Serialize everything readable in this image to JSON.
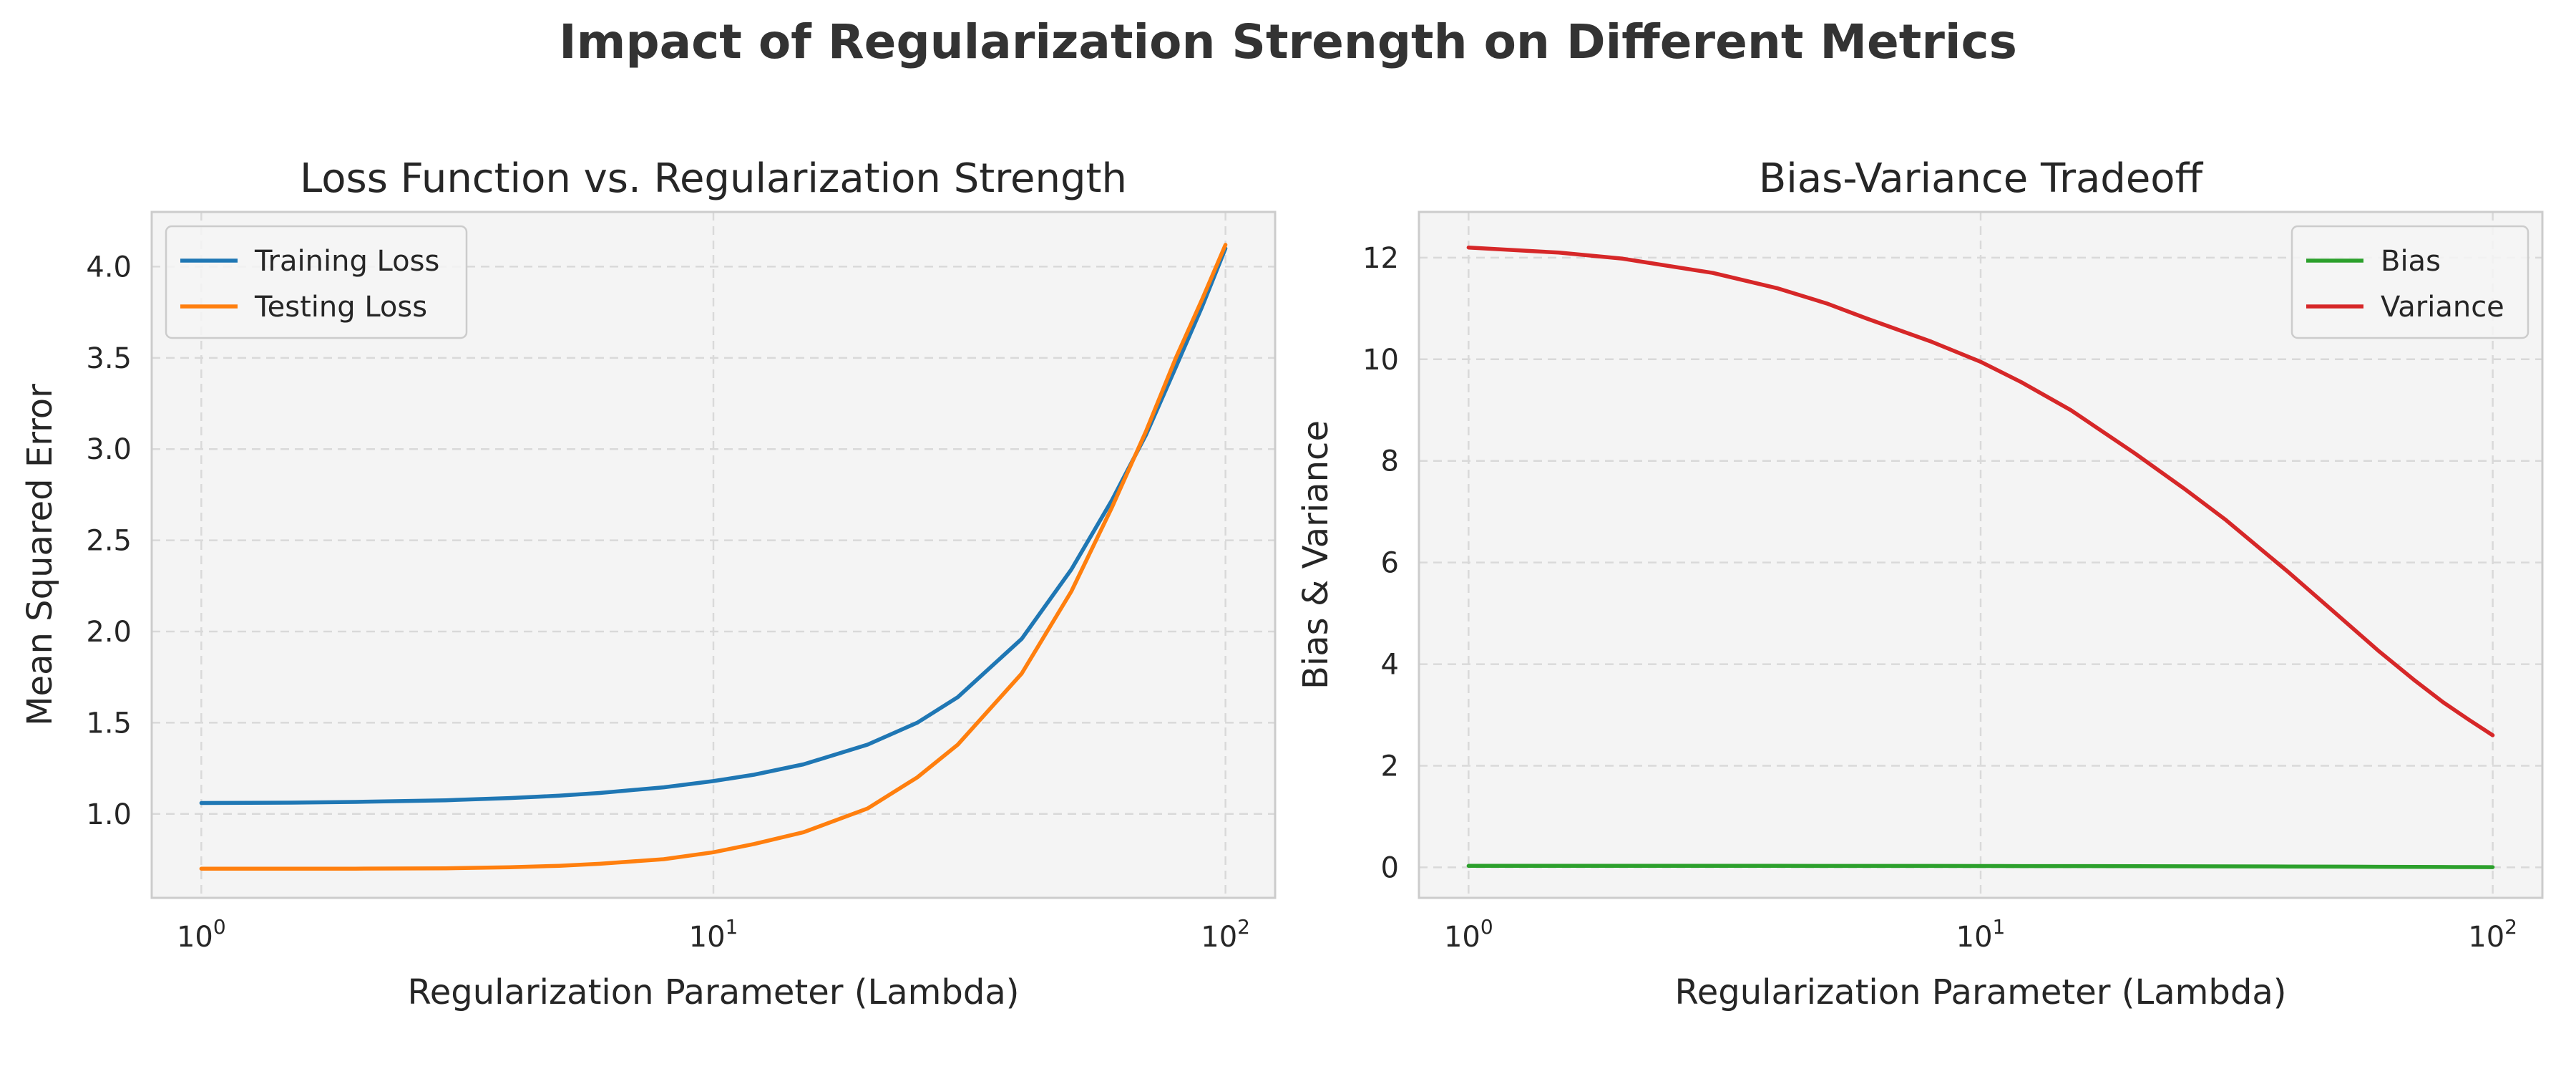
{
  "figure": {
    "title": "Impact of Regularization Strength on Different Metrics"
  },
  "chart_data": [
    {
      "type": "line",
      "title": "Loss Function vs. Regularization Strength",
      "xlabel": "Regularization Parameter (Lambda)",
      "ylabel": "Mean Squared Error",
      "xscale": "log",
      "xlim": [
        0.8,
        125
      ],
      "ylim": [
        0.54,
        4.3
      ],
      "xticks": [
        1,
        10,
        100
      ],
      "xtick_labels": [
        {
          "base": "10",
          "exp": "0"
        },
        {
          "base": "10",
          "exp": "1"
        },
        {
          "base": "10",
          "exp": "2"
        }
      ],
      "yticks": [
        1.0,
        1.5,
        2.0,
        2.5,
        3.0,
        3.5,
        4.0
      ],
      "ytick_labels": [
        "1.0",
        "1.5",
        "2.0",
        "2.5",
        "3.0",
        "3.5",
        "4.0"
      ],
      "grid": true,
      "legend_position": "top-left",
      "x": [
        1,
        1.5,
        2,
        3,
        4,
        5,
        6,
        8,
        10,
        12,
        15,
        20,
        25,
        30,
        40,
        50,
        60,
        70,
        80,
        90,
        100
      ],
      "series": [
        {
          "name": "Training Loss",
          "color": "#1f77b4",
          "values": [
            1.06,
            1.062,
            1.066,
            1.075,
            1.087,
            1.1,
            1.115,
            1.146,
            1.18,
            1.215,
            1.272,
            1.38,
            1.5,
            1.64,
            1.96,
            2.34,
            2.72,
            3.08,
            3.45,
            3.78,
            4.1
          ]
        },
        {
          "name": "Testing Loss",
          "color": "#ff7f0e",
          "values": [
            0.7,
            0.7,
            0.7,
            0.702,
            0.708,
            0.716,
            0.727,
            0.752,
            0.79,
            0.835,
            0.9,
            1.03,
            1.2,
            1.38,
            1.77,
            2.22,
            2.68,
            3.1,
            3.5,
            3.82,
            4.12
          ]
        }
      ]
    },
    {
      "type": "line",
      "title": "Bias-Variance Tradeoff",
      "xlabel": "Regularization Parameter (Lambda)",
      "ylabel": "Bias & Variance",
      "xscale": "log",
      "xlim": [
        0.8,
        125
      ],
      "ylim": [
        -0.6,
        12.9
      ],
      "xticks": [
        1,
        10,
        100
      ],
      "xtick_labels": [
        {
          "base": "10",
          "exp": "0"
        },
        {
          "base": "10",
          "exp": "1"
        },
        {
          "base": "10",
          "exp": "2"
        }
      ],
      "yticks": [
        0,
        2,
        4,
        6,
        8,
        10,
        12
      ],
      "ytick_labels": [
        "0",
        "2",
        "4",
        "6",
        "8",
        "10",
        "12"
      ],
      "grid": true,
      "legend_position": "top-right",
      "x": [
        1,
        1.5,
        2,
        3,
        4,
        5,
        6,
        8,
        10,
        12,
        15,
        20,
        25,
        30,
        40,
        50,
        60,
        70,
        80,
        90,
        100
      ],
      "series": [
        {
          "name": "Bias",
          "color": "#2ca02c",
          "values": [
            0.03,
            0.03,
            0.03,
            0.03,
            0.03,
            0.029,
            0.029,
            0.028,
            0.027,
            0.026,
            0.025,
            0.023,
            0.021,
            0.02,
            0.017,
            0.014,
            0.012,
            0.01,
            0.008,
            0.006,
            0.005
          ]
        },
        {
          "name": "Variance",
          "color": "#d62728",
          "values": [
            12.2,
            12.1,
            11.98,
            11.7,
            11.4,
            11.1,
            10.8,
            10.35,
            9.95,
            9.55,
            9.0,
            8.15,
            7.45,
            6.85,
            5.8,
            4.95,
            4.25,
            3.7,
            3.25,
            2.9,
            2.6
          ]
        }
      ]
    }
  ]
}
